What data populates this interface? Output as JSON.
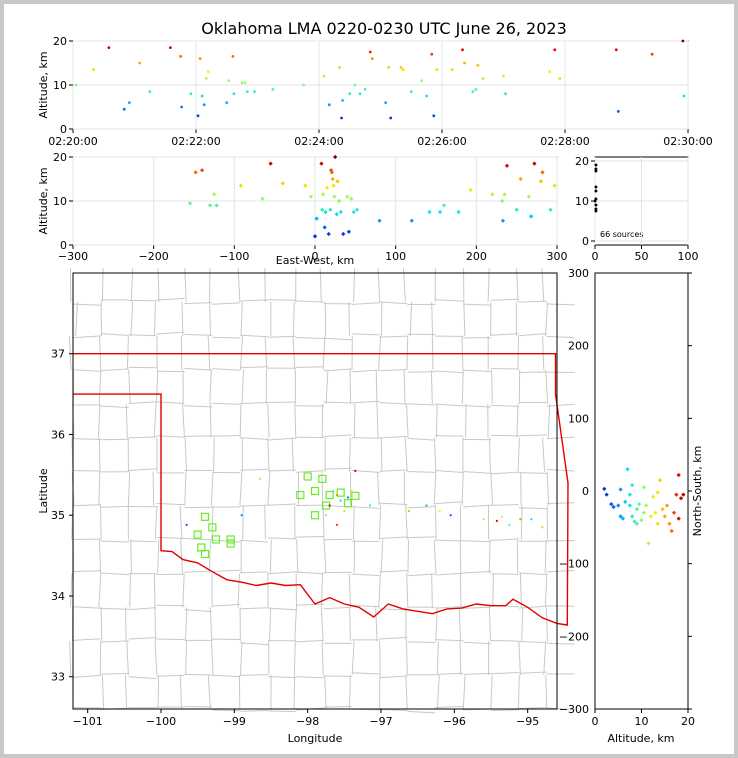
{
  "title": "Oklahoma LMA 0220-0230 UTC June 26, 2023",
  "source_count_label": "66 sources",
  "chart_data": [
    {
      "type": "scatter",
      "name": "altitude-vs-time",
      "ylabel": "Altitude, km",
      "xlim": [
        "02:20:00",
        "02:30:00"
      ],
      "ylim": [
        0,
        20
      ],
      "x_ticks": [
        "02:20:00",
        "02:22:00",
        "02:24:00",
        "02:26:00",
        "02:28:00",
        "02:30:00"
      ],
      "y_ticks": [
        "0",
        "10",
        "20"
      ],
      "grid": true,
      "points": [
        {
          "t": "02:20:03",
          "alt": 10.0
        },
        {
          "t": "02:20:20",
          "alt": 13.5
        },
        {
          "t": "02:20:35",
          "alt": 18.5
        },
        {
          "t": "02:20:50",
          "alt": 4.5
        },
        {
          "t": "02:20:55",
          "alt": 6.0
        },
        {
          "t": "02:21:05",
          "alt": 15.0
        },
        {
          "t": "02:21:15",
          "alt": 8.5
        },
        {
          "t": "02:21:35",
          "alt": 18.5
        },
        {
          "t": "02:21:45",
          "alt": 16.5
        },
        {
          "t": "02:21:46",
          "alt": 5.0
        },
        {
          "t": "02:21:55",
          "alt": 8.0
        },
        {
          "t": "02:22:02",
          "alt": 3.0
        },
        {
          "t": "02:22:04",
          "alt": 16.0
        },
        {
          "t": "02:22:06",
          "alt": 7.5
        },
        {
          "t": "02:22:08",
          "alt": 5.5
        },
        {
          "t": "02:22:10",
          "alt": 11.5
        },
        {
          "t": "02:22:12",
          "alt": 13.0
        },
        {
          "t": "02:22:30",
          "alt": 6.0
        },
        {
          "t": "02:22:32",
          "alt": 11.0
        },
        {
          "t": "02:22:36",
          "alt": 16.5
        },
        {
          "t": "02:22:37",
          "alt": 8.0
        },
        {
          "t": "02:22:45",
          "alt": 10.5
        },
        {
          "t": "02:22:48",
          "alt": 10.5
        },
        {
          "t": "02:22:50",
          "alt": 8.5
        },
        {
          "t": "02:22:57",
          "alt": 8.5
        },
        {
          "t": "02:23:15",
          "alt": 9.0
        },
        {
          "t": "02:23:45",
          "alt": 10.0
        },
        {
          "t": "02:24:05",
          "alt": 12.0
        },
        {
          "t": "02:24:10",
          "alt": 5.5
        },
        {
          "t": "02:24:20",
          "alt": 14.0
        },
        {
          "t": "02:24:22",
          "alt": 2.5
        },
        {
          "t": "02:24:23",
          "alt": 6.5
        },
        {
          "t": "02:24:30",
          "alt": 8.0
        },
        {
          "t": "02:24:35",
          "alt": 10.0
        },
        {
          "t": "02:24:40",
          "alt": 8.0
        },
        {
          "t": "02:24:45",
          "alt": 9.0
        },
        {
          "t": "02:24:50",
          "alt": 17.5
        },
        {
          "t": "02:24:52",
          "alt": 16.0
        },
        {
          "t": "02:25:05",
          "alt": 6.0
        },
        {
          "t": "02:25:08",
          "alt": 14.0
        },
        {
          "t": "02:25:10",
          "alt": 2.5
        },
        {
          "t": "02:25:20",
          "alt": 14.0
        },
        {
          "t": "02:25:22",
          "alt": 13.5
        },
        {
          "t": "02:25:30",
          "alt": 8.5
        },
        {
          "t": "02:25:40",
          "alt": 11.0
        },
        {
          "t": "02:25:45",
          "alt": 7.5
        },
        {
          "t": "02:25:50",
          "alt": 17.0
        },
        {
          "t": "02:25:52",
          "alt": 3.0
        },
        {
          "t": "02:25:55",
          "alt": 13.5
        },
        {
          "t": "02:26:10",
          "alt": 13.5
        },
        {
          "t": "02:26:20",
          "alt": 18.0
        },
        {
          "t": "02:26:22",
          "alt": 15.0
        },
        {
          "t": "02:26:30",
          "alt": 8.5
        },
        {
          "t": "02:26:33",
          "alt": 9.0
        },
        {
          "t": "02:26:35",
          "alt": 14.5
        },
        {
          "t": "02:26:40",
          "alt": 11.5
        },
        {
          "t": "02:27:00",
          "alt": 12.0
        },
        {
          "t": "02:27:02",
          "alt": 8.0
        },
        {
          "t": "02:27:45",
          "alt": 13.0
        },
        {
          "t": "02:27:50",
          "alt": 18.0
        },
        {
          "t": "02:27:55",
          "alt": 11.5
        },
        {
          "t": "02:28:50",
          "alt": 18.0
        },
        {
          "t": "02:28:52",
          "alt": 4.0
        },
        {
          "t": "02:29:25",
          "alt": 17.0
        },
        {
          "t": "02:29:55",
          "alt": 20.0
        },
        {
          "t": "02:29:56",
          "alt": 7.5
        }
      ]
    },
    {
      "type": "scatter",
      "name": "altitude-vs-east-west",
      "xlabel": "East-West, km",
      "ylabel": "Altitude, km",
      "xlim": [
        -300,
        300
      ],
      "ylim": [
        0,
        20
      ],
      "x_ticks": [
        "−300",
        "−200",
        "−100",
        "0",
        "100",
        "200",
        "300"
      ],
      "y_ticks": [
        "0",
        "10",
        "20"
      ],
      "grid": true,
      "points": [
        {
          "x": -155,
          "y": 9.5
        },
        {
          "x": -148,
          "y": 16.5
        },
        {
          "x": -140,
          "y": 17.0
        },
        {
          "x": -130,
          "y": 9.0
        },
        {
          "x": -125,
          "y": 11.5
        },
        {
          "x": -122,
          "y": 9.0
        },
        {
          "x": -92,
          "y": 13.5
        },
        {
          "x": -65,
          "y": 10.5
        },
        {
          "x": -55,
          "y": 18.5
        },
        {
          "x": -40,
          "y": 14.0
        },
        {
          "x": -12,
          "y": 13.5
        },
        {
          "x": -5,
          "y": 11.0
        },
        {
          "x": 0,
          "y": 2.0
        },
        {
          "x": 2,
          "y": 6.0
        },
        {
          "x": 8,
          "y": 18.5
        },
        {
          "x": 9,
          "y": 8.0
        },
        {
          "x": 10,
          "y": 11.5
        },
        {
          "x": 12,
          "y": 4.0
        },
        {
          "x": 13,
          "y": 7.5
        },
        {
          "x": 15,
          "y": 13.0
        },
        {
          "x": 17,
          "y": 2.5
        },
        {
          "x": 19,
          "y": 8.0
        },
        {
          "x": 20,
          "y": 17.0
        },
        {
          "x": 21,
          "y": 16.5
        },
        {
          "x": 22,
          "y": 15.0
        },
        {
          "x": 23,
          "y": 13.5
        },
        {
          "x": 24,
          "y": 11.0
        },
        {
          "x": 25,
          "y": 20.0
        },
        {
          "x": 27,
          "y": 7.0
        },
        {
          "x": 28,
          "y": 14.5
        },
        {
          "x": 30,
          "y": 10.0
        },
        {
          "x": 32,
          "y": 7.5
        },
        {
          "x": 35,
          "y": 2.5
        },
        {
          "x": 40,
          "y": 11.0
        },
        {
          "x": 42,
          "y": 3.0
        },
        {
          "x": 45,
          "y": 10.5
        },
        {
          "x": 48,
          "y": 7.5
        },
        {
          "x": 52,
          "y": 8.0
        },
        {
          "x": 80,
          "y": 5.5
        },
        {
          "x": 120,
          "y": 5.5
        },
        {
          "x": 142,
          "y": 7.5
        },
        {
          "x": 155,
          "y": 7.5
        },
        {
          "x": 160,
          "y": 9.0
        },
        {
          "x": 178,
          "y": 7.5
        },
        {
          "x": 193,
          "y": 12.5
        },
        {
          "x": 220,
          "y": 11.5
        },
        {
          "x": 232,
          "y": 10.0
        },
        {
          "x": 233,
          "y": 5.5
        },
        {
          "x": 235,
          "y": 11.5
        },
        {
          "x": 238,
          "y": 18.0
        },
        {
          "x": 250,
          "y": 8.0
        },
        {
          "x": 255,
          "y": 15.0
        },
        {
          "x": 265,
          "y": 11.0
        },
        {
          "x": 268,
          "y": 6.5
        },
        {
          "x": 272,
          "y": 18.5
        },
        {
          "x": 280,
          "y": 14.5
        },
        {
          "x": 282,
          "y": 16.5
        },
        {
          "x": 292,
          "y": 8.0
        },
        {
          "x": 297,
          "y": 13.5
        }
      ]
    },
    {
      "type": "scatter",
      "name": "altitude-histogram",
      "xlim": [
        0,
        100
      ],
      "ylim": [
        0,
        20
      ],
      "x_ticks": [
        "0",
        "50",
        "100"
      ],
      "y_ticks": [
        "0",
        "10",
        "20"
      ],
      "grid": true,
      "points": [
        {
          "count": 1,
          "alt": 19.0
        },
        {
          "count": 1,
          "alt": 18.0
        },
        {
          "count": 1,
          "alt": 17.5
        },
        {
          "count": 1,
          "alt": 13.5
        },
        {
          "count": 1,
          "alt": 12.5
        },
        {
          "count": 1,
          "alt": 10.5
        },
        {
          "count": 1,
          "alt": 9.0
        },
        {
          "count": 1,
          "alt": 8.0
        },
        {
          "count": 1,
          "alt": 7.5
        },
        {
          "count": 0,
          "alt": 10.0
        }
      ]
    },
    {
      "type": "scatter",
      "name": "plan-view-map",
      "xlabel": "Longitude",
      "ylabel": "Latitude",
      "xlim": [
        -101.2,
        -94.6
      ],
      "ylim": [
        32.6,
        38.0
      ],
      "x_ticks": [
        "−101",
        "−100",
        "−99",
        "−98",
        "−97",
        "−96",
        "−95"
      ],
      "y_ticks": [
        "33",
        "34",
        "35",
        "36",
        "37"
      ],
      "grid": false,
      "points": [
        {
          "lon": -99.65,
          "lat": 34.88
        },
        {
          "lon": -98.65,
          "lat": 35.45
        },
        {
          "lon": -97.7,
          "lat": 35.12
        },
        {
          "lon": -97.65,
          "lat": 35.3
        },
        {
          "lon": -97.6,
          "lat": 35.25
        },
        {
          "lon": -97.55,
          "lat": 35.18
        },
        {
          "lon": -97.5,
          "lat": 35.05
        },
        {
          "lon": -97.45,
          "lat": 35.22
        },
        {
          "lon": -97.4,
          "lat": 35.3
        },
        {
          "lon": -97.35,
          "lat": 35.55
        },
        {
          "lon": -97.75,
          "lat": 35.0
        },
        {
          "lon": -97.6,
          "lat": 34.88
        },
        {
          "lon": -97.15,
          "lat": 35.12
        },
        {
          "lon": -96.62,
          "lat": 35.05
        },
        {
          "lon": -96.38,
          "lat": 35.12
        },
        {
          "lon": -96.2,
          "lat": 35.05
        },
        {
          "lon": -96.05,
          "lat": 35.0
        },
        {
          "lon": -95.6,
          "lat": 34.95
        },
        {
          "lon": -95.42,
          "lat": 34.93
        },
        {
          "lon": -95.25,
          "lat": 34.88
        },
        {
          "lon": -95.1,
          "lat": 34.95
        },
        {
          "lon": -94.95,
          "lat": 34.95
        },
        {
          "lon": -94.8,
          "lat": 34.85
        },
        {
          "lon": -98.9,
          "lat": 35.0
        },
        {
          "lon": -95.35,
          "lat": 34.98
        }
      ],
      "flash_boxes": [
        {
          "lon": -99.4,
          "lat": 34.98
        },
        {
          "lon": -99.3,
          "lat": 34.85
        },
        {
          "lon": -99.5,
          "lat": 34.76
        },
        {
          "lon": -99.25,
          "lat": 34.7
        },
        {
          "lon": -99.45,
          "lat": 34.6
        },
        {
          "lon": -99.4,
          "lat": 34.52
        },
        {
          "lon": -99.05,
          "lat": 34.7
        },
        {
          "lon": -99.05,
          "lat": 34.65
        },
        {
          "lon": -98.0,
          "lat": 35.48
        },
        {
          "lon": -97.8,
          "lat": 35.45
        },
        {
          "lon": -97.9,
          "lat": 35.3
        },
        {
          "lon": -98.1,
          "lat": 35.25
        },
        {
          "lon": -97.7,
          "lat": 35.25
        },
        {
          "lon": -97.55,
          "lat": 35.28
        },
        {
          "lon": -97.35,
          "lat": 35.24
        },
        {
          "lon": -97.45,
          "lat": 35.15
        },
        {
          "lon": -97.75,
          "lat": 35.12
        },
        {
          "lon": -97.9,
          "lat": 35.0
        }
      ]
    },
    {
      "type": "scatter",
      "name": "north-south-vs-altitude",
      "xlabel": "Altitude, km",
      "ylabel": "North-South, km",
      "xlim": [
        0,
        20
      ],
      "ylim": [
        -300,
        300
      ],
      "x_ticks": [
        "0",
        "10",
        "20"
      ],
      "y_ticks": [
        "300",
        "200",
        "100",
        "0",
        "−100",
        "−200",
        "−300"
      ],
      "grid": false,
      "points": [
        {
          "alt": 2.0,
          "ns": 3
        },
        {
          "alt": 2.5,
          "ns": -5
        },
        {
          "alt": 3.5,
          "ns": -18
        },
        {
          "alt": 4.0,
          "ns": -22
        },
        {
          "alt": 5.0,
          "ns": -20
        },
        {
          "alt": 5.5,
          "ns": -35
        },
        {
          "alt": 5.5,
          "ns": 2
        },
        {
          "alt": 6.0,
          "ns": -38
        },
        {
          "alt": 6.5,
          "ns": -15
        },
        {
          "alt": 7.0,
          "ns": 30
        },
        {
          "alt": 7.5,
          "ns": -5
        },
        {
          "alt": 7.5,
          "ns": -20
        },
        {
          "alt": 8.0,
          "ns": 8
        },
        {
          "alt": 8.0,
          "ns": -35
        },
        {
          "alt": 8.5,
          "ns": -42
        },
        {
          "alt": 9.0,
          "ns": -25
        },
        {
          "alt": 9.0,
          "ns": -45
        },
        {
          "alt": 9.5,
          "ns": -18
        },
        {
          "alt": 10.0,
          "ns": -40
        },
        {
          "alt": 10.5,
          "ns": -30
        },
        {
          "alt": 10.5,
          "ns": 5
        },
        {
          "alt": 11.0,
          "ns": -20
        },
        {
          "alt": 11.5,
          "ns": -72
        },
        {
          "alt": 12.0,
          "ns": -35
        },
        {
          "alt": 12.5,
          "ns": -8
        },
        {
          "alt": 13.0,
          "ns": -30
        },
        {
          "alt": 13.5,
          "ns": -45
        },
        {
          "alt": 13.5,
          "ns": -2
        },
        {
          "alt": 14.0,
          "ns": 15
        },
        {
          "alt": 14.5,
          "ns": -25
        },
        {
          "alt": 15.0,
          "ns": -35
        },
        {
          "alt": 15.5,
          "ns": -20
        },
        {
          "alt": 16.0,
          "ns": -45
        },
        {
          "alt": 16.5,
          "ns": -55
        },
        {
          "alt": 17.0,
          "ns": -30
        },
        {
          "alt": 17.5,
          "ns": -5
        },
        {
          "alt": 18.0,
          "ns": -38
        },
        {
          "alt": 18.0,
          "ns": 22
        },
        {
          "alt": 18.5,
          "ns": -10
        },
        {
          "alt": 19.0,
          "ns": -5
        }
      ]
    }
  ]
}
